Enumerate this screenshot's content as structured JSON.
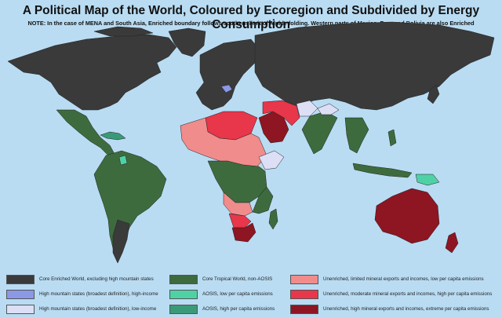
{
  "title": "A Political Map of the World, Coloured by Ecoregion and Subdivided by Energy Consumption",
  "note": "NOTE: In the case of MENA and South Asia, Enriched boundary follows southern limit of Alpide folding. Western parts of Mexico, Peru and Bolivia are also Enriched",
  "colors": {
    "ocean": "#b9dcf3",
    "core_enriched": "#3a3a3a",
    "high_mtn_high_income": "#8a98e6",
    "high_mtn_low_income": "#dcdff5",
    "core_tropical": "#3d6b3e",
    "aosis_low": "#4fd1a6",
    "aosis_high": "#3a9a78",
    "unenriched_limited": "#f08c8c",
    "unenriched_moderate": "#e8364a",
    "unenriched_high": "#8e1522"
  },
  "legend": [
    {
      "label": "Core Enriched World, excluding high mountain states",
      "color": "#3a3a3a"
    },
    {
      "label": "High mountain states (broadest definition), high-income",
      "color": "#8a98e6"
    },
    {
      "label": "High mountain states (broadest definition), low-income",
      "color": "#dcdff5"
    },
    {
      "label": "Core Tropical World, non-AOSIS",
      "color": "#3d6b3e"
    },
    {
      "label": "AOSIS, low per capita emissions",
      "color": "#4fd1a6"
    },
    {
      "label": "AOSIS, high per capita emissions",
      "color": "#3a9a78"
    },
    {
      "label": "Unenriched, limited mineral exports and incomes, low per capita emissions",
      "color": "#f08c8c"
    },
    {
      "label": "Unenriched, moderate mineral exports and incomes, high per capita emissions",
      "color": "#e8364a"
    },
    {
      "label": "Unenriched, high mineral exports and incomes, extreme per capita emissions",
      "color": "#8e1522"
    }
  ]
}
